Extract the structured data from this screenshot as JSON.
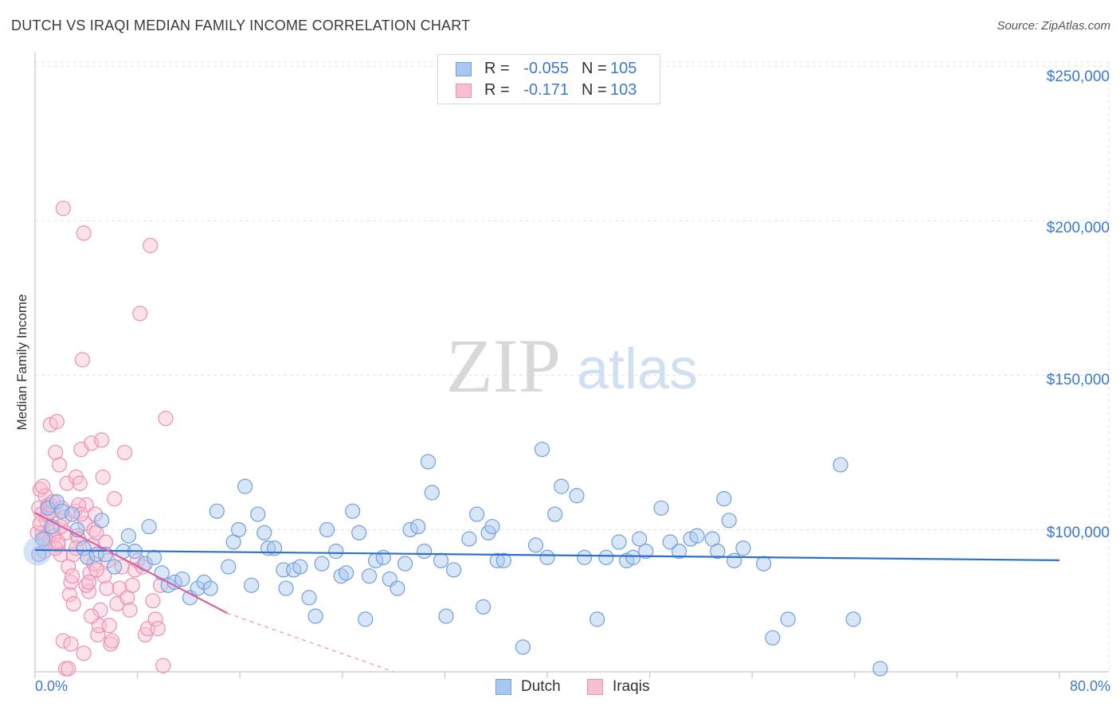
{
  "title": "DUTCH VS IRAQI MEDIAN FAMILY INCOME CORRELATION CHART",
  "source": "Source: ZipAtlas.com",
  "watermark": {
    "zip": "ZIP",
    "atlas": "atlas"
  },
  "legend": {
    "rows": [
      {
        "r_label": "R =",
        "r_value": "-0.055",
        "n_label": "N =",
        "n_value": "105",
        "color": "#a9c8f0",
        "border": "#6f9fe0"
      },
      {
        "r_label": "R =",
        "r_value": "-0.171",
        "n_label": "N =",
        "n_value": "103",
        "color": "#f8bfd2",
        "border": "#ec8fb0"
      }
    ]
  },
  "bottom_legend": [
    {
      "label": "Dutch",
      "color": "#a9c8f0",
      "border": "#6f9fe0"
    },
    {
      "label": "Iraqis",
      "color": "#f8bfd2",
      "border": "#ec8fb0"
    }
  ],
  "chart_data": {
    "type": "scatter",
    "title": "DUTCH VS IRAQI MEDIAN FAMILY INCOME CORRELATION CHART",
    "xlabel": "",
    "ylabel": "Median Family Income",
    "xlim": [
      0,
      80
    ],
    "ylim": [
      54000,
      256000
    ],
    "x_tick_labels": [
      "0.0%",
      "80.0%"
    ],
    "y_ticks": [
      {
        "value": 100000,
        "label": "$100,000"
      },
      {
        "value": 150000,
        "label": "$150,000"
      },
      {
        "value": 200000,
        "label": "$200,000"
      },
      {
        "value": 250000,
        "label": "$250,000"
      }
    ],
    "grid": true,
    "series": [
      {
        "name": "Dutch",
        "color": "#a9c8f0",
        "stroke": "#6f9fe0",
        "trend": {
          "x0": 0,
          "y0": 93400,
          "x1": 80,
          "y1": 90100,
          "color": "#2c6fd0"
        },
        "points": [
          [
            1.0,
            107000
          ],
          [
            1.7,
            109000
          ],
          [
            2.1,
            106000
          ],
          [
            2.9,
            105000
          ],
          [
            3.3,
            100000
          ],
          [
            3.8,
            94000
          ],
          [
            4.1,
            91000
          ],
          [
            4.8,
            92000
          ],
          [
            5.5,
            92000
          ],
          [
            6.2,
            88000
          ],
          [
            6.9,
            93000
          ],
          [
            7.3,
            98000
          ],
          [
            7.8,
            93000
          ],
          [
            8.6,
            89000
          ],
          [
            8.9,
            101000
          ],
          [
            9.3,
            91000
          ],
          [
            9.9,
            86000
          ],
          [
            10.4,
            82000
          ],
          [
            10.9,
            83000
          ],
          [
            11.5,
            84000
          ],
          [
            12.1,
            78000
          ],
          [
            12.7,
            81000
          ],
          [
            13.2,
            83000
          ],
          [
            13.7,
            81000
          ],
          [
            14.2,
            106000
          ],
          [
            15.1,
            88000
          ],
          [
            15.5,
            96000
          ],
          [
            15.9,
            100000
          ],
          [
            16.4,
            114000
          ],
          [
            16.9,
            82000
          ],
          [
            17.4,
            105000
          ],
          [
            17.9,
            99000
          ],
          [
            18.2,
            94000
          ],
          [
            18.7,
            94000
          ],
          [
            19.4,
            87000
          ],
          [
            19.6,
            81000
          ],
          [
            20.2,
            87000
          ],
          [
            20.7,
            88000
          ],
          [
            21.4,
            78000
          ],
          [
            21.9,
            72000
          ],
          [
            22.4,
            89000
          ],
          [
            22.8,
            100000
          ],
          [
            23.5,
            93000
          ],
          [
            23.9,
            85000
          ],
          [
            24.3,
            86000
          ],
          [
            24.8,
            106000
          ],
          [
            25.3,
            99000
          ],
          [
            25.8,
            71000
          ],
          [
            26.1,
            85000
          ],
          [
            26.6,
            90000
          ],
          [
            27.2,
            91000
          ],
          [
            27.7,
            84000
          ],
          [
            28.3,
            81000
          ],
          [
            28.9,
            89000
          ],
          [
            29.3,
            100000
          ],
          [
            29.9,
            101000
          ],
          [
            30.4,
            93000
          ],
          [
            30.7,
            122000
          ],
          [
            31.0,
            112000
          ],
          [
            31.7,
            90000
          ],
          [
            32.1,
            72000
          ],
          [
            32.7,
            87000
          ],
          [
            33.9,
            97000
          ],
          [
            34.5,
            105000
          ],
          [
            35.0,
            75000
          ],
          [
            35.4,
            99000
          ],
          [
            35.7,
            101000
          ],
          [
            36.1,
            90000
          ],
          [
            36.6,
            90000
          ],
          [
            38.1,
            62000
          ],
          [
            39.1,
            95000
          ],
          [
            39.6,
            126000
          ],
          [
            40.0,
            91000
          ],
          [
            40.6,
            105000
          ],
          [
            41.1,
            114000
          ],
          [
            42.3,
            111000
          ],
          [
            42.9,
            91000
          ],
          [
            43.9,
            71000
          ],
          [
            44.6,
            91000
          ],
          [
            45.6,
            96000
          ],
          [
            46.2,
            90000
          ],
          [
            46.7,
            91000
          ],
          [
            47.2,
            97000
          ],
          [
            47.7,
            93000
          ],
          [
            48.9,
            107000
          ],
          [
            49.6,
            96000
          ],
          [
            50.3,
            93000
          ],
          [
            51.2,
            97000
          ],
          [
            51.7,
            98000
          ],
          [
            52.9,
            97000
          ],
          [
            53.3,
            93000
          ],
          [
            53.8,
            110000
          ],
          [
            54.2,
            103000
          ],
          [
            54.6,
            90000
          ],
          [
            55.3,
            94000
          ],
          [
            56.9,
            89000
          ],
          [
            57.6,
            65000
          ],
          [
            58.8,
            71000
          ],
          [
            62.9,
            121000
          ],
          [
            63.9,
            71000
          ],
          [
            66.0,
            55000
          ],
          [
            0.3,
            92000
          ],
          [
            0.6,
            97000
          ],
          [
            1.3,
            101000
          ],
          [
            5.2,
            103000
          ]
        ]
      },
      {
        "name": "Iraqis",
        "color": "#f8bfd2",
        "stroke": "#ec8fb0",
        "trend": {
          "x0": 0,
          "y0": 105500,
          "x1": 15,
          "y1": 73000,
          "color": "#e0609a",
          "dash_x1": 28,
          "dash_y1": 50600
        },
        "points": [
          [
            0.3,
            107000
          ],
          [
            0.4,
            113000
          ],
          [
            0.5,
            105000
          ],
          [
            0.6,
            99000
          ],
          [
            0.7,
            93000
          ],
          [
            0.8,
            111000
          ],
          [
            0.9,
            103000
          ],
          [
            1.0,
            108000
          ],
          [
            1.1,
            96000
          ],
          [
            1.2,
            134000
          ],
          [
            1.3,
            106000
          ],
          [
            1.4,
            100000
          ],
          [
            1.5,
            98000
          ],
          [
            1.6,
            125000
          ],
          [
            1.7,
            135000
          ],
          [
            1.8,
            95000
          ],
          [
            1.9,
            121000
          ],
          [
            2.0,
            92000
          ],
          [
            2.1,
            107000
          ],
          [
            2.2,
            204000
          ],
          [
            2.3,
            104000
          ],
          [
            2.4,
            99000
          ],
          [
            2.5,
            115000
          ],
          [
            2.6,
            88000
          ],
          [
            2.7,
            79000
          ],
          [
            2.8,
            83000
          ],
          [
            2.9,
            85000
          ],
          [
            3.0,
            76000
          ],
          [
            3.1,
            106000
          ],
          [
            3.2,
            117000
          ],
          [
            3.3,
            98000
          ],
          [
            3.4,
            97000
          ],
          [
            3.5,
            115000
          ],
          [
            3.6,
            126000
          ],
          [
            3.7,
            155000
          ],
          [
            3.8,
            196000
          ],
          [
            3.9,
            102000
          ],
          [
            4.0,
            108000
          ],
          [
            4.1,
            91000
          ],
          [
            4.2,
            80000
          ],
          [
            4.3,
            86000
          ],
          [
            4.4,
            128000
          ],
          [
            4.5,
            95000
          ],
          [
            4.6,
            100000
          ],
          [
            4.7,
            105000
          ],
          [
            4.8,
            99000
          ],
          [
            4.9,
            66000
          ],
          [
            5.0,
            69000
          ],
          [
            5.1,
            74000
          ],
          [
            5.2,
            129000
          ],
          [
            5.3,
            117000
          ],
          [
            5.4,
            85000
          ],
          [
            5.5,
            96000
          ],
          [
            5.6,
            81000
          ],
          [
            5.7,
            90000
          ],
          [
            5.8,
            69000
          ],
          [
            5.9,
            63000
          ],
          [
            6.0,
            64000
          ],
          [
            6.2,
            110000
          ],
          [
            6.4,
            76000
          ],
          [
            6.6,
            81000
          ],
          [
            6.8,
            88000
          ],
          [
            7.0,
            125000
          ],
          [
            7.2,
            78000
          ],
          [
            7.4,
            74000
          ],
          [
            7.6,
            82000
          ],
          [
            7.8,
            87000
          ],
          [
            8.0,
            90000
          ],
          [
            8.2,
            170000
          ],
          [
            8.4,
            88000
          ],
          [
            8.6,
            66000
          ],
          [
            8.8,
            68000
          ],
          [
            9.0,
            192000
          ],
          [
            9.2,
            77000
          ],
          [
            9.4,
            71000
          ],
          [
            9.6,
            68000
          ],
          [
            9.8,
            82000
          ],
          [
            10.0,
            56000
          ],
          [
            10.2,
            136000
          ],
          [
            0.2,
            99000
          ],
          [
            0.4,
            102000
          ],
          [
            0.6,
            114000
          ],
          [
            0.8,
            97000
          ],
          [
            1.0,
            105000
          ],
          [
            1.2,
            108000
          ],
          [
            1.4,
            109000
          ],
          [
            1.6,
            94000
          ],
          [
            1.8,
            96000
          ],
          [
            2.0,
            101000
          ],
          [
            2.2,
            64000
          ],
          [
            2.4,
            55000
          ],
          [
            2.6,
            55000
          ],
          [
            2.8,
            63000
          ],
          [
            3.0,
            92000
          ],
          [
            3.2,
            94000
          ],
          [
            3.4,
            108000
          ],
          [
            3.6,
            105000
          ],
          [
            3.8,
            60000
          ],
          [
            4.0,
            82000
          ],
          [
            4.2,
            83000
          ],
          [
            4.4,
            72000
          ],
          [
            4.6,
            89000
          ],
          [
            4.8,
            87000
          ]
        ]
      }
    ]
  }
}
